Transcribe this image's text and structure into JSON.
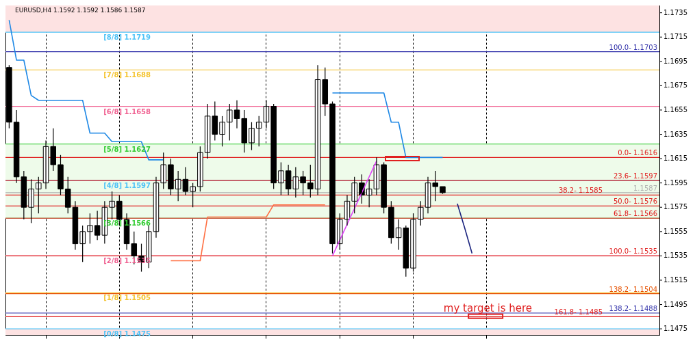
{
  "chart_data": {
    "type": "candlestick",
    "title": "EURUSD,H4  1.1592 1.1592 1.1586 1.1587",
    "categories": [
      null,
      null,
      null,
      null,
      null,
      null,
      null,
      null,
      null,
      null,
      null,
      null,
      null,
      null,
      null,
      null,
      null,
      null,
      null,
      null,
      null,
      null,
      null,
      null,
      null,
      null,
      null,
      null,
      null,
      null,
      null,
      null,
      null,
      null,
      null,
      null,
      null,
      null,
      null,
      null,
      null,
      null,
      null,
      null,
      null,
      null,
      null,
      null,
      null,
      null,
      null,
      null,
      null,
      null,
      null,
      null,
      null,
      null,
      null,
      null,
      null,
      null,
      null,
      null,
      null,
      null,
      null,
      null,
      null,
      null,
      null,
      null,
      null,
      null,
      null,
      null,
      null,
      null,
      null,
      null,
      null,
      null,
      null,
      null,
      null,
      null,
      null,
      null,
      null
    ],
    "ohlc": [
      [
        1.169,
        1.1692,
        1.164,
        1.1645
      ],
      [
        1.1645,
        1.1655,
        1.1595,
        1.16
      ],
      [
        1.16,
        1.1605,
        1.1565,
        1.1575
      ],
      [
        1.1575,
        1.1598,
        1.1562,
        1.159
      ],
      [
        1.159,
        1.16,
        1.157,
        1.1595
      ],
      [
        1.1595,
        1.163,
        1.159,
        1.1625
      ],
      [
        1.1625,
        1.164,
        1.1605,
        1.161
      ],
      [
        1.161,
        1.1618,
        1.1585,
        1.159
      ],
      [
        1.159,
        1.16,
        1.157,
        1.1575
      ],
      [
        1.1575,
        1.158,
        1.154,
        1.1545
      ],
      [
        1.1545,
        1.156,
        1.153,
        1.1555
      ],
      [
        1.1555,
        1.157,
        1.1545,
        1.156
      ],
      [
        1.156,
        1.1572,
        1.1548,
        1.1552
      ],
      [
        1.1552,
        1.158,
        1.1545,
        1.1575
      ],
      [
        1.1575,
        1.1588,
        1.1565,
        1.158
      ],
      [
        1.158,
        1.1585,
        1.156,
        1.1565
      ],
      [
        1.1565,
        1.157,
        1.154,
        1.1545
      ],
      [
        1.1545,
        1.1555,
        1.1528,
        1.1535
      ],
      [
        1.1535,
        1.1545,
        1.1522,
        1.153
      ],
      [
        1.153,
        1.156,
        1.1525,
        1.1555
      ],
      [
        1.1555,
        1.16,
        1.155,
        1.1595
      ],
      [
        1.1595,
        1.162,
        1.159,
        1.161
      ],
      [
        1.161,
        1.1615,
        1.1585,
        1.159
      ],
      [
        1.159,
        1.1605,
        1.158,
        1.1598
      ],
      [
        1.1598,
        1.1608,
        1.1585,
        1.1588
      ],
      [
        1.1588,
        1.1595,
        1.1575,
        1.1592
      ],
      [
        1.1592,
        1.1625,
        1.1588,
        1.162
      ],
      [
        1.162,
        1.166,
        1.1615,
        1.165
      ],
      [
        1.165,
        1.1662,
        1.163,
        1.1635
      ],
      [
        1.1635,
        1.165,
        1.1625,
        1.1645
      ],
      [
        1.1645,
        1.166,
        1.163,
        1.1655
      ],
      [
        1.1655,
        1.1663,
        1.164,
        1.1648
      ],
      [
        1.1648,
        1.1655,
        1.162,
        1.1628
      ],
      [
        1.1628,
        1.1645,
        1.1622,
        1.164
      ],
      [
        1.164,
        1.165,
        1.1625,
        1.1645
      ],
      [
        1.1645,
        1.1663,
        1.164,
        1.1658
      ],
      [
        1.1658,
        1.166,
        1.159,
        1.1595
      ],
      [
        1.1595,
        1.1612,
        1.1585,
        1.1605
      ],
      [
        1.1605,
        1.161,
        1.1585,
        1.159
      ],
      [
        1.159,
        1.1608,
        1.1583,
        1.16
      ],
      [
        1.16,
        1.1605,
        1.1585,
        1.1595
      ],
      [
        1.1595,
        1.161,
        1.1583,
        1.159
      ],
      [
        1.159,
        1.1692,
        1.1585,
        1.168
      ],
      [
        1.168,
        1.169,
        1.165,
        1.166
      ],
      [
        1.166,
        1.1662,
        1.1537,
        1.1545
      ],
      [
        1.1545,
        1.157,
        1.154,
        1.1565
      ],
      [
        1.1565,
        1.1585,
        1.156,
        1.158
      ],
      [
        1.158,
        1.16,
        1.157,
        1.1595
      ],
      [
        1.1595,
        1.1602,
        1.1578,
        1.1585
      ],
      [
        1.1585,
        1.1598,
        1.1575,
        1.159
      ],
      [
        1.159,
        1.1616,
        1.1585,
        1.161
      ],
      [
        1.161,
        1.1612,
        1.157,
        1.1575
      ],
      [
        1.1575,
        1.158,
        1.1545,
        1.155
      ],
      [
        1.155,
        1.1565,
        1.154,
        1.1558
      ],
      [
        1.1558,
        1.156,
        1.1518,
        1.1525
      ],
      [
        1.1525,
        1.157,
        1.1522,
        1.1565
      ],
      [
        1.1565,
        1.158,
        1.156,
        1.1575
      ],
      [
        1.1575,
        1.16,
        1.157,
        1.1595
      ],
      [
        1.1595,
        1.1605,
        1.158,
        1.1592
      ],
      [
        1.1592,
        1.1592,
        1.1586,
        1.1587
      ],
      null,
      null,
      null,
      null,
      null,
      null,
      null,
      null,
      null,
      null,
      null,
      null,
      null,
      null,
      null,
      null,
      null,
      null,
      null,
      null,
      null,
      null,
      null,
      null,
      null,
      null,
      null,
      null,
      null
    ],
    "series": [
      {
        "type": "line",
        "color": "#1e88e5",
        "values": [
          1.1729,
          1.1696,
          1.1696,
          1.1667,
          1.1663,
          1.1663,
          1.1663,
          1.1663,
          1.1663,
          1.1663,
          1.1663,
          1.1636,
          1.1636,
          1.1636,
          1.1629,
          1.1629,
          1.1629,
          1.1629,
          1.1629,
          1.1614,
          1.1614,
          1.1614,
          null,
          null,
          null,
          null,
          null,
          null,
          null,
          null,
          null,
          null,
          null,
          null,
          null,
          null,
          null,
          null,
          null,
          null,
          null,
          null,
          null,
          null,
          1.1669,
          1.1669,
          1.1669,
          1.1669,
          1.1669,
          1.1669,
          1.1669,
          1.1669,
          1.1645,
          1.1645,
          1.1616,
          1.1616,
          1.1616,
          1.1616,
          1.1616,
          1.1616,
          null,
          null,
          null,
          null,
          null,
          null,
          null,
          null,
          null,
          null,
          null,
          null,
          null,
          null,
          null,
          null,
          null,
          null,
          null,
          null,
          null,
          null,
          null,
          null,
          null,
          null,
          null,
          null,
          null
        ]
      },
      {
        "type": "line",
        "color": "#ff7043",
        "values": [
          null,
          null,
          null,
          null,
          null,
          null,
          null,
          null,
          null,
          null,
          null,
          null,
          null,
          null,
          null,
          null,
          null,
          null,
          null,
          null,
          null,
          null,
          1.1531,
          1.1531,
          1.1531,
          1.1531,
          1.1531,
          1.1567,
          1.1567,
          1.1567,
          1.1567,
          1.1567,
          1.1567,
          1.1567,
          1.1567,
          1.1567,
          1.1577,
          1.1577,
          1.1577,
          1.1577,
          1.1577,
          1.1577,
          1.1577,
          1.1577,
          null,
          null,
          null,
          null,
          null,
          null,
          null,
          null,
          null,
          null,
          null,
          null,
          null,
          null,
          null,
          null,
          null,
          null,
          null,
          null,
          null,
          null,
          null,
          null,
          null,
          null,
          null,
          null,
          null,
          null,
          null,
          null,
          null,
          null,
          null,
          null,
          null,
          null,
          null,
          null,
          null,
          null,
          null,
          null,
          null
        ]
      },
      {
        "type": "line",
        "color": "#e040fb",
        "values": [
          null,
          null,
          null,
          null,
          null,
          null,
          null,
          null,
          null,
          null,
          null,
          null,
          null,
          null,
          null,
          null,
          null,
          null,
          null,
          null,
          null,
          null,
          null,
          null,
          null,
          null,
          null,
          null,
          null,
          null,
          null,
          null,
          null,
          null,
          null,
          null,
          null,
          null,
          null,
          null,
          null,
          null,
          null,
          null,
          1.1535,
          1.1548,
          1.1561,
          1.1574,
          1.1587,
          1.16,
          1.1613,
          null,
          null,
          null,
          null,
          null,
          null,
          null,
          null,
          null,
          null,
          null,
          null,
          null,
          null,
          null,
          null,
          null,
          null,
          null,
          null,
          null,
          null,
          null,
          null,
          null,
          null,
          null,
          null,
          null,
          null,
          null,
          null,
          null,
          null,
          null,
          null,
          null,
          null
        ]
      },
      {
        "type": "line",
        "color": "#1a237e",
        "values": [
          null,
          null,
          null,
          null,
          null,
          null,
          null,
          null,
          null,
          null,
          null,
          null,
          null,
          null,
          null,
          null,
          null,
          null,
          null,
          null,
          null,
          null,
          null,
          null,
          null,
          null,
          null,
          null,
          null,
          null,
          null,
          null,
          null,
          null,
          null,
          null,
          null,
          null,
          null,
          null,
          null,
          null,
          null,
          null,
          null,
          null,
          null,
          null,
          null,
          null,
          null,
          null,
          null,
          null,
          null,
          null,
          null,
          null,
          null,
          null,
          null,
          1.1578,
          1.1558,
          1.1537,
          null,
          null,
          null,
          null,
          null,
          null,
          null,
          null,
          null,
          null,
          null,
          null,
          null,
          null,
          null,
          null,
          null,
          null,
          null,
          null,
          null,
          null,
          null,
          null,
          null
        ]
      }
    ],
    "ylim": [
      1.147,
      1.1741
    ],
    "yticks": [
      1.1475,
      1.1495,
      1.1515,
      1.1535,
      1.1555,
      1.1575,
      1.1595,
      1.1615,
      1.1635,
      1.1655,
      1.1675,
      1.1695,
      1.1715,
      1.1735
    ],
    "grid": "x",
    "tick_labels": "y",
    "bands": [
      {
        "axis": "y",
        "from": 1.1719,
        "to": 1.1741,
        "color": "#fde2e2"
      },
      {
        "axis": "y",
        "from": 1.1566,
        "to": 1.1627,
        "color": "#eefbea"
      },
      {
        "axis": "y",
        "from": 1.147,
        "to": 1.1475,
        "color": "#fde2e2"
      }
    ],
    "ref_lines": [
      {
        "axis": "y",
        "value": 1.1719,
        "color": "#4fc3f7"
      },
      {
        "axis": "y",
        "value": 1.1688,
        "color": "#f4c430"
      },
      {
        "axis": "y",
        "value": 1.1658,
        "color": "#f06292"
      },
      {
        "axis": "y",
        "value": 1.1627,
        "color": "#33cc33"
      },
      {
        "axis": "y",
        "value": 1.1597,
        "color": "#4fc3f7"
      },
      {
        "axis": "y",
        "value": 1.1566,
        "color": "#33cc33"
      },
      {
        "axis": "y",
        "value": 1.1535,
        "color": "#f06292"
      },
      {
        "axis": "y",
        "value": 1.1505,
        "color": "#f4c430"
      },
      {
        "axis": "y",
        "value": 1.1475,
        "color": "#4fc3f7"
      },
      {
        "axis": "y",
        "value": 1.1703,
        "color": "#3333aa"
      },
      {
        "axis": "y",
        "value": 1.1616,
        "color": "#e02020"
      },
      {
        "axis": "y",
        "value": 1.1597,
        "color": "#e02020"
      },
      {
        "axis": "y",
        "value": 1.1587,
        "label": "1.1587",
        "color": "#b0b0b0"
      },
      {
        "axis": "y",
        "value": 1.1585,
        "color": "#e02020"
      },
      {
        "axis": "y",
        "value": 1.1576,
        "color": "#e02020"
      },
      {
        "axis": "y",
        "value": 1.1566,
        "color": "#e02020"
      },
      {
        "axis": "y",
        "value": 1.1535,
        "color": "#e02020"
      },
      {
        "axis": "y",
        "value": 1.1504,
        "color": "#e65100"
      },
      {
        "axis": "y",
        "value": 1.1488,
        "color": "#3333aa"
      },
      {
        "axis": "y",
        "value": 1.1485,
        "color": "#e02020"
      }
    ],
    "annotations": [
      {
        "text": "[8/8]  1.1719",
        "y": 1.1719
      },
      {
        "text": "[7/8]  1.1688",
        "y": 1.1688
      },
      {
        "text": "[6/8]  1.1658",
        "y": 1.1658
      },
      {
        "text": "[5/8]  1.1627",
        "y": 1.1627
      },
      {
        "text": "[4/8]  1.1597",
        "y": 1.1597
      },
      {
        "text": "[3/8]  1.1566",
        "y": 1.1566
      },
      {
        "text": "[2/8]  1.1535",
        "y": 1.1535
      },
      {
        "text": "[1/8]  1.1505",
        "y": 1.1505
      },
      {
        "text": "[0/8]  1.1475",
        "y": 1.1475
      },
      "my target is here",
      {
        "text": "100.0- 1.1703",
        "y": 1.1703
      },
      {
        "text": "0.0- 1.1616",
        "y": 1.1616
      },
      {
        "text": "23.6- 1.1597",
        "y": 1.1597
      },
      {
        "text": "38.2- 1.1585",
        "y": 1.1585
      },
      {
        "text": "50.0- 1.1576",
        "y": 1.1576
      },
      {
        "text": "61.8- 1.1566",
        "y": 1.1566
      },
      {
        "text": "100.0- 1.1535",
        "y": 1.1535
      },
      {
        "text": "138.2- 1.1504",
        "y": 1.1504
      },
      {
        "text": "138.2- 1.1488",
        "y": 1.1488
      },
      {
        "text": "161.8- 1.1485",
        "y": 1.1485
      }
    ]
  }
}
